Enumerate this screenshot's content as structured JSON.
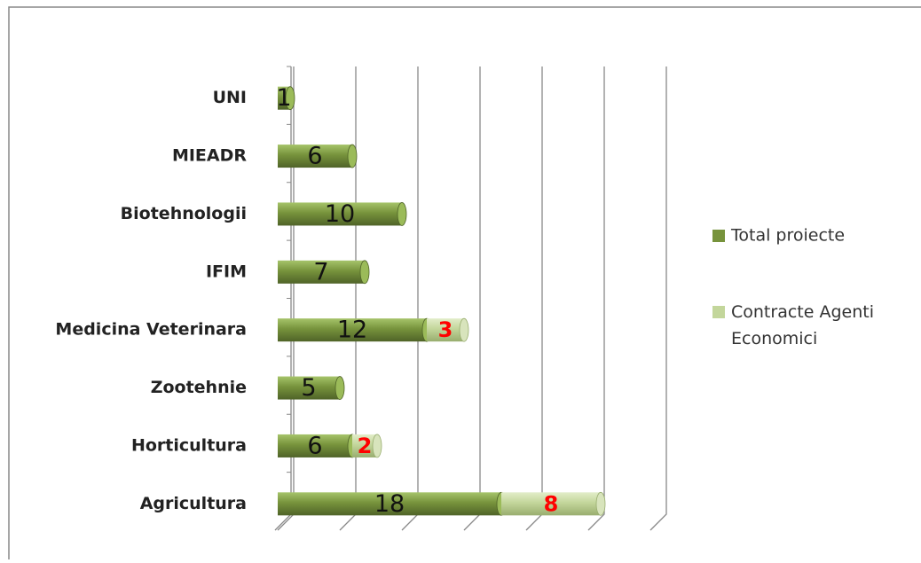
{
  "chart_data": {
    "type": "bar",
    "orientation": "horizontal",
    "stacked": true,
    "categories": [
      "UNI",
      "MIEADR",
      "Biotehnologii",
      "IFIM",
      "Medicina Veterinara",
      "Zootehnie",
      "Horticultura",
      "Agricultura"
    ],
    "series": [
      {
        "name": "Total proiecte",
        "color": "#77933c",
        "values": [
          1,
          6,
          10,
          7,
          12,
          5,
          6,
          18
        ]
      },
      {
        "name": "Contracte Agenti Economici",
        "color": "#c3d69b",
        "values": [
          null,
          null,
          null,
          null,
          3,
          null,
          2,
          8
        ]
      }
    ],
    "xlim": [
      0,
      30
    ],
    "xticks": [
      0,
      5,
      10,
      15,
      20,
      25,
      30
    ],
    "grid": true
  }
}
